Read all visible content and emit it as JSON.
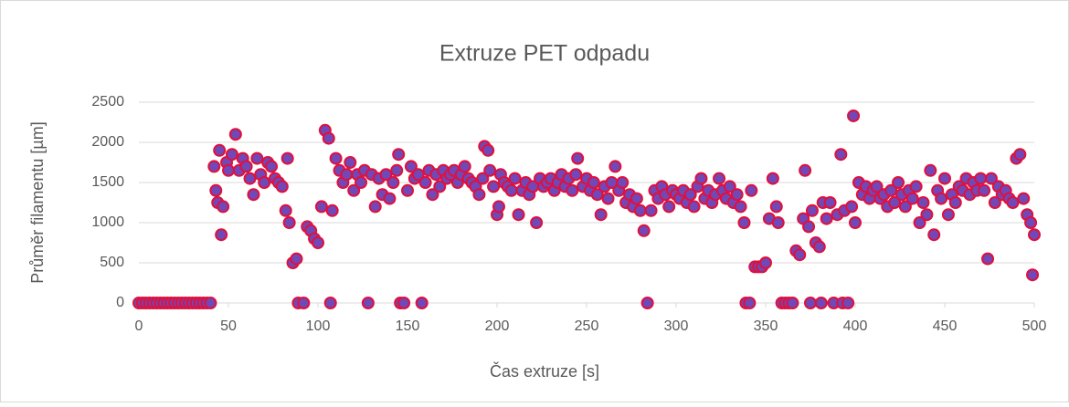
{
  "chart_data": {
    "type": "scatter",
    "title": "Extruze PET odpadu",
    "x_label": "Čas extruze [s]",
    "y_label": "Průměr filamentu [µm]",
    "color": "#7048b8",
    "edge_color": "#e0103c",
    "grid": true,
    "xlim": [
      0,
      500
    ],
    "xticks": [
      0,
      50,
      100,
      150,
      200,
      250,
      300,
      350,
      400,
      450,
      500
    ],
    "ylim": [
      0,
      2500
    ],
    "yticks": [
      0,
      500,
      1000,
      1500,
      2000,
      2500
    ],
    "x": [
      0,
      2,
      4,
      6,
      8,
      10,
      12,
      14,
      16,
      18,
      20,
      22,
      24,
      26,
      28,
      30,
      32,
      34,
      36,
      38,
      40,
      42,
      43,
      44,
      45,
      46,
      47,
      49,
      50,
      52,
      54,
      56,
      58,
      60,
      62,
      64,
      66,
      68,
      70,
      72,
      74,
      76,
      78,
      80,
      82,
      83,
      84,
      86,
      88,
      89,
      92,
      94,
      96,
      98,
      100,
      102,
      104,
      106,
      107,
      108,
      110,
      112,
      114,
      116,
      118,
      120,
      122,
      124,
      126,
      128,
      130,
      132,
      134,
      136,
      138,
      140,
      142,
      144,
      145,
      146,
      148,
      150,
      152,
      154,
      156,
      158,
      160,
      162,
      164,
      166,
      168,
      170,
      172,
      174,
      176,
      178,
      180,
      182,
      184,
      186,
      188,
      190,
      192,
      193,
      195,
      196,
      198,
      200,
      201,
      202,
      204,
      206,
      208,
      210,
      212,
      214,
      216,
      218,
      220,
      222,
      224,
      226,
      228,
      230,
      232,
      234,
      236,
      238,
      240,
      242,
      244,
      245,
      248,
      250,
      252,
      254,
      256,
      258,
      260,
      262,
      264,
      266,
      268,
      270,
      272,
      274,
      276,
      278,
      280,
      282,
      284,
      286,
      288,
      290,
      292,
      294,
      296,
      298,
      300,
      302,
      304,
      306,
      308,
      310,
      312,
      314,
      316,
      318,
      320,
      322,
      324,
      326,
      328,
      330,
      332,
      334,
      336,
      338,
      339,
      341,
      342,
      344,
      346,
      348,
      350,
      352,
      354,
      356,
      357,
      359,
      361,
      363,
      365,
      367,
      369,
      371,
      372,
      374,
      375,
      376,
      378,
      380,
      381,
      382,
      384,
      386,
      388,
      390,
      392,
      393,
      394,
      396,
      398,
      399,
      400,
      402,
      404,
      406,
      408,
      410,
      412,
      414,
      416,
      418,
      420,
      422,
      424,
      426,
      428,
      430,
      432,
      434,
      436,
      438,
      440,
      442,
      444,
      446,
      448,
      450,
      452,
      454,
      456,
      458,
      460,
      462,
      464,
      466,
      468,
      470,
      472,
      474,
      476,
      478,
      480,
      482,
      484,
      486,
      488,
      490,
      492,
      494,
      496,
      498,
      499,
      500
    ],
    "values": [
      0,
      0,
      0,
      0,
      0,
      0,
      0,
      0,
      0,
      0,
      0,
      0,
      0,
      0,
      0,
      0,
      0,
      0,
      0,
      0,
      0,
      1700,
      1400,
      1250,
      1900,
      850,
      1200,
      1750,
      1650,
      1850,
      2100,
      1650,
      1800,
      1700,
      1550,
      1350,
      1800,
      1600,
      1500,
      1750,
      1700,
      1550,
      1500,
      1450,
      1150,
      1800,
      1000,
      500,
      550,
      0,
      0,
      950,
      900,
      800,
      750,
      1200,
      2150,
      2050,
      0,
      1150,
      1800,
      1650,
      1500,
      1600,
      1750,
      1400,
      1600,
      1500,
      1650,
      0,
      1600,
      1200,
      1550,
      1350,
      1600,
      1300,
      1500,
      1650,
      1850,
      0,
      0,
      1400,
      1700,
      1550,
      1600,
      0,
      1500,
      1650,
      1350,
      1600,
      1450,
      1650,
      1550,
      1600,
      1650,
      1500,
      1600,
      1700,
      1550,
      1500,
      1450,
      1350,
      1550,
      1950,
      1900,
      1650,
      1450,
      1100,
      1200,
      1600,
      1500,
      1450,
      1400,
      1550,
      1100,
      1400,
      1500,
      1350,
      1450,
      1000,
      1550,
      1450,
      1500,
      1550,
      1400,
      1500,
      1600,
      1450,
      1550,
      1400,
      1600,
      1800,
      1450,
      1550,
      1400,
      1500,
      1350,
      1100,
      1450,
      1300,
      1500,
      1700,
      1400,
      1500,
      1250,
      1350,
      1200,
      1300,
      1150,
      900,
      0,
      1150,
      1400,
      1300,
      1450,
      1350,
      1200,
      1400,
      1350,
      1300,
      1400,
      1250,
      1350,
      1200,
      1450,
      1550,
      1300,
      1400,
      1250,
      1350,
      1550,
      1400,
      1300,
      1450,
      1250,
      1350,
      1200,
      1000,
      0,
      0,
      1400,
      450,
      450,
      450,
      500,
      1050,
      1550,
      1200,
      1000,
      0,
      0,
      0,
      0,
      650,
      600,
      1050,
      1650,
      950,
      0,
      1150,
      750,
      700,
      0,
      1250,
      1050,
      1250,
      0,
      1100,
      1850,
      0,
      1150,
      0,
      1200,
      2330,
      1000,
      1500,
      1350,
      1450,
      1300,
      1400,
      1450,
      1300,
      1350,
      1200,
      1400,
      1250,
      1500,
      1350,
      1200,
      1400,
      1300,
      1450,
      1000,
      1250,
      1100,
      1650,
      850,
      1400,
      1300,
      1550,
      1100,
      1350,
      1250,
      1450,
      1400,
      1550,
      1350,
      1500,
      1400,
      1550,
      1400,
      550,
      1550,
      1250,
      1450,
      1350,
      1400,
      1300,
      1250,
      1800,
      1850,
      1300,
      1100,
      1000,
      350,
      850
    ]
  }
}
